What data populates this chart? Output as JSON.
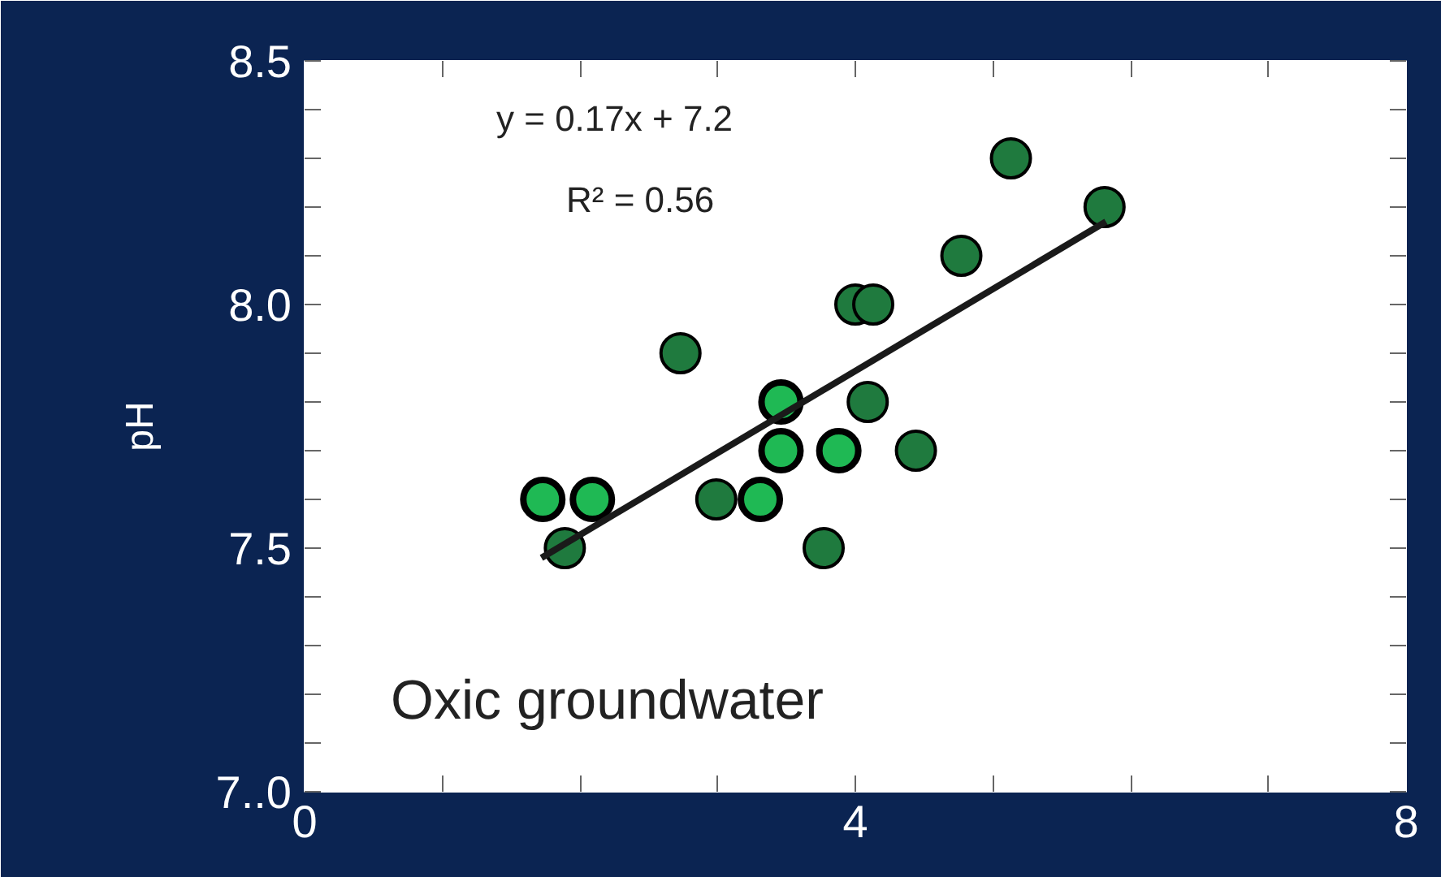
{
  "chart_data": {
    "type": "scatter",
    "ylabel": "pH",
    "marker": "circle",
    "grid": false,
    "xlim": [
      0,
      8
    ],
    "ylim": [
      7.0,
      8.5
    ],
    "xticks": [
      0,
      {
        "value": 1,
        "label": null
      },
      {
        "value": 2,
        "label": null
      },
      {
        "value": 3,
        "label": null
      },
      4,
      {
        "value": 5,
        "label": null
      },
      {
        "value": 6,
        "label": null
      },
      {
        "value": 7,
        "label": null
      },
      8
    ],
    "yticks": [
      {
        "value": 7.0,
        "label": "7..0"
      },
      {
        "value": 7.1,
        "label": null
      },
      {
        "value": 7.2,
        "label": null
      },
      {
        "value": 7.3,
        "label": null
      },
      {
        "value": 7.4,
        "label": null
      },
      {
        "value": 7.5,
        "label": "7.5"
      },
      {
        "value": 7.6,
        "label": null
      },
      {
        "value": 7.7,
        "label": null
      },
      {
        "value": 7.8,
        "label": null
      },
      {
        "value": 7.9,
        "label": null
      },
      {
        "value": 8.0,
        "label": "8.0"
      },
      {
        "value": 8.1,
        "label": null
      },
      {
        "value": 8.2,
        "label": null
      },
      {
        "value": 8.3,
        "label": null
      },
      {
        "value": 8.4,
        "label": null
      },
      {
        "value": 8.5,
        "label": "8.5"
      }
    ],
    "series": [
      {
        "color": "#1f7a3e",
        "x": [
          1.89,
          2.73,
          2.99,
          3.77,
          4.0,
          4.13,
          4.09,
          4.44,
          4.77,
          5.13,
          5.81
        ],
        "values": [
          7.5,
          7.9,
          7.6,
          7.5,
          8.0,
          8.0,
          7.8,
          7.7,
          8.1,
          8.3,
          8.2
        ]
      },
      {
        "color": "#1fb954",
        "x": [
          1.73,
          2.09,
          3.31,
          3.46,
          3.46,
          3.88
        ],
        "values": [
          7.6,
          7.6,
          7.6,
          7.8,
          7.7,
          7.7
        ]
      },
      {
        "type": "line",
        "color": "#1a1a1a",
        "marker": "none",
        "x": [
          1.72,
          5.82
        ],
        "values": [
          7.48,
          8.17
        ]
      }
    ],
    "annotations": [
      "y = 0.17x + 7.2",
      "R²  = 0.56",
      "Oxic groundwater"
    ]
  }
}
